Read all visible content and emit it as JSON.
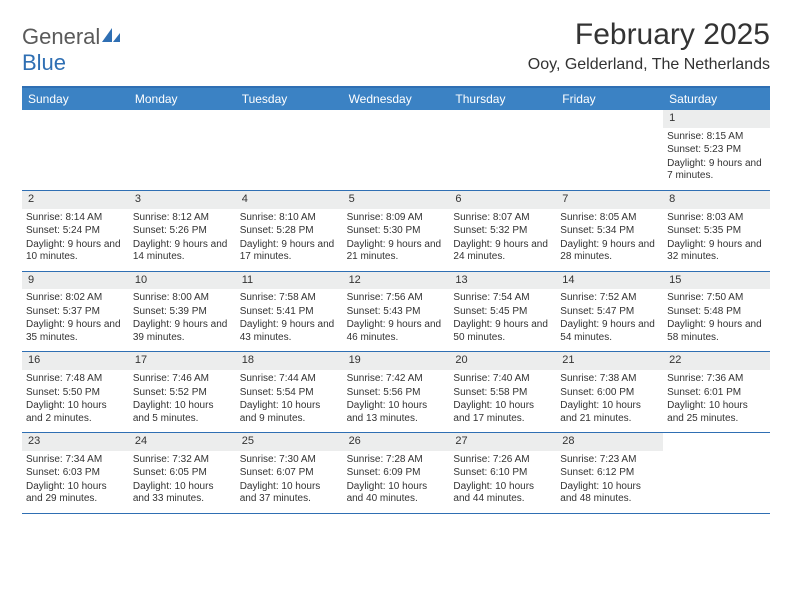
{
  "brand": {
    "part1": "General",
    "part2": "Blue"
  },
  "title": "February 2025",
  "location": "Ooy, Gelderland, The Netherlands",
  "colors": {
    "header_bg": "#3b82c4",
    "border": "#2f6fb3",
    "daynum_bg": "#eceded",
    "text": "#333333",
    "logo_gray": "#5a5a5a",
    "logo_blue": "#2f6fb3"
  },
  "dayNames": [
    "Sunday",
    "Monday",
    "Tuesday",
    "Wednesday",
    "Thursday",
    "Friday",
    "Saturday"
  ],
  "weeks": [
    [
      null,
      null,
      null,
      null,
      null,
      null,
      {
        "n": "1",
        "sunrise": "8:15 AM",
        "sunset": "5:23 PM",
        "daylight": "9 hours and 7 minutes."
      }
    ],
    [
      {
        "n": "2",
        "sunrise": "8:14 AM",
        "sunset": "5:24 PM",
        "daylight": "9 hours and 10 minutes."
      },
      {
        "n": "3",
        "sunrise": "8:12 AM",
        "sunset": "5:26 PM",
        "daylight": "9 hours and 14 minutes."
      },
      {
        "n": "4",
        "sunrise": "8:10 AM",
        "sunset": "5:28 PM",
        "daylight": "9 hours and 17 minutes."
      },
      {
        "n": "5",
        "sunrise": "8:09 AM",
        "sunset": "5:30 PM",
        "daylight": "9 hours and 21 minutes."
      },
      {
        "n": "6",
        "sunrise": "8:07 AM",
        "sunset": "5:32 PM",
        "daylight": "9 hours and 24 minutes."
      },
      {
        "n": "7",
        "sunrise": "8:05 AM",
        "sunset": "5:34 PM",
        "daylight": "9 hours and 28 minutes."
      },
      {
        "n": "8",
        "sunrise": "8:03 AM",
        "sunset": "5:35 PM",
        "daylight": "9 hours and 32 minutes."
      }
    ],
    [
      {
        "n": "9",
        "sunrise": "8:02 AM",
        "sunset": "5:37 PM",
        "daylight": "9 hours and 35 minutes."
      },
      {
        "n": "10",
        "sunrise": "8:00 AM",
        "sunset": "5:39 PM",
        "daylight": "9 hours and 39 minutes."
      },
      {
        "n": "11",
        "sunrise": "7:58 AM",
        "sunset": "5:41 PM",
        "daylight": "9 hours and 43 minutes."
      },
      {
        "n": "12",
        "sunrise": "7:56 AM",
        "sunset": "5:43 PM",
        "daylight": "9 hours and 46 minutes."
      },
      {
        "n": "13",
        "sunrise": "7:54 AM",
        "sunset": "5:45 PM",
        "daylight": "9 hours and 50 minutes."
      },
      {
        "n": "14",
        "sunrise": "7:52 AM",
        "sunset": "5:47 PM",
        "daylight": "9 hours and 54 minutes."
      },
      {
        "n": "15",
        "sunrise": "7:50 AM",
        "sunset": "5:48 PM",
        "daylight": "9 hours and 58 minutes."
      }
    ],
    [
      {
        "n": "16",
        "sunrise": "7:48 AM",
        "sunset": "5:50 PM",
        "daylight": "10 hours and 2 minutes."
      },
      {
        "n": "17",
        "sunrise": "7:46 AM",
        "sunset": "5:52 PM",
        "daylight": "10 hours and 5 minutes."
      },
      {
        "n": "18",
        "sunrise": "7:44 AM",
        "sunset": "5:54 PM",
        "daylight": "10 hours and 9 minutes."
      },
      {
        "n": "19",
        "sunrise": "7:42 AM",
        "sunset": "5:56 PM",
        "daylight": "10 hours and 13 minutes."
      },
      {
        "n": "20",
        "sunrise": "7:40 AM",
        "sunset": "5:58 PM",
        "daylight": "10 hours and 17 minutes."
      },
      {
        "n": "21",
        "sunrise": "7:38 AM",
        "sunset": "6:00 PM",
        "daylight": "10 hours and 21 minutes."
      },
      {
        "n": "22",
        "sunrise": "7:36 AM",
        "sunset": "6:01 PM",
        "daylight": "10 hours and 25 minutes."
      }
    ],
    [
      {
        "n": "23",
        "sunrise": "7:34 AM",
        "sunset": "6:03 PM",
        "daylight": "10 hours and 29 minutes."
      },
      {
        "n": "24",
        "sunrise": "7:32 AM",
        "sunset": "6:05 PM",
        "daylight": "10 hours and 33 minutes."
      },
      {
        "n": "25",
        "sunrise": "7:30 AM",
        "sunset": "6:07 PM",
        "daylight": "10 hours and 37 minutes."
      },
      {
        "n": "26",
        "sunrise": "7:28 AM",
        "sunset": "6:09 PM",
        "daylight": "10 hours and 40 minutes."
      },
      {
        "n": "27",
        "sunrise": "7:26 AM",
        "sunset": "6:10 PM",
        "daylight": "10 hours and 44 minutes."
      },
      {
        "n": "28",
        "sunrise": "7:23 AM",
        "sunset": "6:12 PM",
        "daylight": "10 hours and 48 minutes."
      },
      null
    ]
  ],
  "labels": {
    "sunrise": "Sunrise:",
    "sunset": "Sunset:",
    "daylight": "Daylight:"
  }
}
